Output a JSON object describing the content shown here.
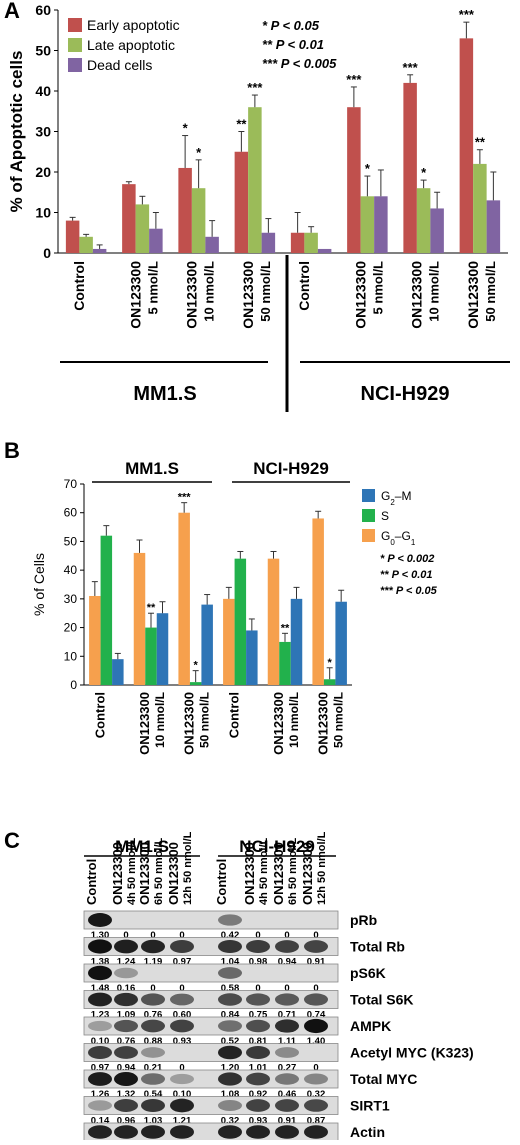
{
  "panel_labels": {
    "a": "A",
    "b": "B",
    "c": "C"
  },
  "colors": {
    "early": "#c0504d",
    "late": "#9bbb59",
    "dead": "#8064a2",
    "g2m": "#2e75b6",
    "s": "#22b14c",
    "g0g1": "#f6a04d"
  },
  "chart_data": [
    {
      "type": "bar",
      "panel": "A",
      "ylabel": "% of Apoptotic cells",
      "ylim": [
        0,
        60
      ],
      "yticks": [
        0,
        10,
        20,
        30,
        40,
        50,
        60
      ],
      "groups": [
        "MM1.S",
        "NCI-H929"
      ],
      "categories": [
        {
          "line1": "Control",
          "line2": ""
        },
        {
          "line1": "ON123300",
          "line2": "5 nmol/L"
        },
        {
          "line1": "ON123300",
          "line2": "10 nmol/L"
        },
        {
          "line1": "ON123300",
          "line2": "50 nmol/L"
        },
        {
          "line1": "Control",
          "line2": ""
        },
        {
          "line1": "ON123300",
          "line2": "5 nmol/L"
        },
        {
          "line1": "ON123300",
          "line2": "10 nmol/L"
        },
        {
          "line1": "ON123300",
          "line2": "50 nmol/L"
        }
      ],
      "series": [
        {
          "name": "Early apoptotic",
          "color_key": "early",
          "values": [
            8,
            17,
            21,
            25,
            5,
            36,
            42,
            53
          ],
          "errors": [
            0.8,
            0.6,
            8,
            5,
            5,
            5,
            2,
            4
          ],
          "stars": [
            "",
            "",
            "*",
            "**",
            "",
            "***",
            "***",
            "***"
          ]
        },
        {
          "name": "Late apoptotic",
          "color_key": "late",
          "values": [
            4,
            12,
            16,
            36,
            5,
            14,
            16,
            22
          ],
          "errors": [
            0.6,
            2,
            7,
            3,
            1.5,
            5,
            2,
            3.5
          ],
          "stars": [
            "",
            "",
            "*",
            "***",
            "",
            "*",
            "*",
            "**"
          ]
        },
        {
          "name": "Dead cells",
          "color_key": "dead",
          "values": [
            1,
            6,
            4,
            5,
            1,
            14,
            11,
            13
          ],
          "errors": [
            1,
            4,
            4,
            3.5,
            0,
            6.5,
            4,
            7
          ],
          "stars": [
            "",
            "",
            "",
            "",
            "",
            "",
            "",
            ""
          ]
        }
      ],
      "significance": [
        "* P < 0.05",
        "** P < 0.01",
        "*** P < 0.005"
      ]
    },
    {
      "type": "bar",
      "panel": "B",
      "ylabel": "% of Cells",
      "ylim": [
        0,
        70
      ],
      "yticks": [
        0,
        10,
        20,
        30,
        40,
        50,
        60,
        70
      ],
      "groups": [
        "MM1.S",
        "NCI-H929"
      ],
      "categories": [
        {
          "line1": "Control",
          "line2": ""
        },
        {
          "line1": "ON123300",
          "line2": "10 nmol/L"
        },
        {
          "line1": "ON123300",
          "line2": "50 nmol/L"
        },
        {
          "line1": "Control",
          "line2": ""
        },
        {
          "line1": "ON123300",
          "line2": "10 nmol/L"
        },
        {
          "line1": "ON123300",
          "line2": "50 nmol/L"
        }
      ],
      "series": [
        {
          "name": "G0–G1",
          "color_key": "g0g1",
          "values": [
            31,
            46,
            60,
            30,
            44,
            58
          ],
          "errors": [
            5,
            4.5,
            3.5,
            4,
            2.5,
            2.5
          ],
          "stars": [
            "",
            "",
            "***",
            "",
            "",
            ""
          ]
        },
        {
          "name": "S",
          "color_key": "s",
          "values": [
            52,
            20,
            1,
            44,
            15,
            2
          ],
          "errors": [
            3.5,
            5,
            4,
            2.5,
            3,
            4
          ],
          "stars": [
            "",
            "**",
            "*",
            "",
            "**",
            "*"
          ]
        },
        {
          "name": "G2–M",
          "color_key": "g2m",
          "values": [
            9,
            25,
            28,
            19,
            30,
            29
          ],
          "errors": [
            2,
            4,
            3.5,
            4,
            4,
            4
          ],
          "stars": [
            "",
            "",
            "",
            "",
            "",
            ""
          ]
        }
      ],
      "legend": [
        {
          "base": "G",
          "sub": "2",
          "rest": "–M",
          "color_key": "g2m"
        },
        {
          "base": "S",
          "sub": "",
          "rest": "",
          "color_key": "s"
        },
        {
          "base": "G",
          "sub": "0",
          "rest": "–G",
          "sub2": "1",
          "color_key": "g0g1"
        }
      ],
      "significance": [
        "* P < 0.002",
        "** P < 0.01",
        "*** P < 0.05"
      ]
    }
  ],
  "blot": {
    "groups": [
      "MM1.S",
      "NCI-H929"
    ],
    "columns": [
      {
        "l1": "Control",
        "l2": ""
      },
      {
        "l1": "ON123300",
        "l2": "4h 50 nmol/L"
      },
      {
        "l1": "ON123300",
        "l2": "6h 50 nmol/L"
      },
      {
        "l1": "ON123300",
        "l2": "12h 50 nmol/L"
      },
      {
        "l1": "Control",
        "l2": ""
      },
      {
        "l1": "ON123300",
        "l2": "4h 50 nmol/L"
      },
      {
        "l1": "ON123300",
        "l2": "6h 50 nmol/L"
      },
      {
        "l1": "ON123300",
        "l2": "12h 50 nmol/L"
      }
    ],
    "rows": [
      {
        "label": "pRb",
        "values": [
          "1.30",
          "0",
          "0",
          "0",
          "0.42",
          "0",
          "0",
          "0"
        ],
        "band": [
          1.3,
          0,
          0,
          0,
          0.42,
          0,
          0,
          0
        ]
      },
      {
        "label": "Total Rb",
        "values": [
          "1.38",
          "1.24",
          "1.19",
          "0.97",
          "1.04",
          "0.98",
          "0.94",
          "0.91"
        ],
        "band": [
          1.38,
          1.24,
          1.19,
          0.97,
          1.04,
          0.98,
          0.94,
          0.91
        ]
      },
      {
        "label": "pS6K",
        "values": [
          "1.48",
          "0.16",
          "0",
          "0",
          "0.58",
          "0",
          "0",
          "0"
        ],
        "band": [
          1.48,
          0.16,
          0,
          0,
          0.58,
          0,
          0,
          0
        ]
      },
      {
        "label": "Total S6K",
        "values": [
          "1.23",
          "1.09",
          "0.76",
          "0.60",
          "0.84",
          "0.75",
          "0.71",
          "0.74"
        ],
        "band": [
          1.23,
          1.09,
          0.76,
          0.6,
          0.84,
          0.75,
          0.71,
          0.74
        ]
      },
      {
        "label": "AMPK",
        "values": [
          "0.10",
          "0.76",
          "0.88",
          "0.93",
          "0.52",
          "0.81",
          "1.11",
          "1.40"
        ],
        "band": [
          0.1,
          0.76,
          0.88,
          0.93,
          0.52,
          0.81,
          1.11,
          1.4
        ]
      },
      {
        "label": "Acetyl MYC (K323)",
        "values": [
          "0.97",
          "0.94",
          "0.21",
          "0",
          "1.20",
          "1.01",
          "0.27",
          "0"
        ],
        "band": [
          0.97,
          0.94,
          0.21,
          0,
          1.2,
          1.01,
          0.27,
          0
        ]
      },
      {
        "label": "Total MYC",
        "values": [
          "1.26",
          "1.32",
          "0.54",
          "0.10",
          "1.08",
          "0.92",
          "0.46",
          "0.32"
        ],
        "band": [
          1.26,
          1.32,
          0.54,
          0.1,
          1.08,
          0.92,
          0.46,
          0.32
        ]
      },
      {
        "label": "SIRT1",
        "values": [
          "0.14",
          "0.96",
          "1.03",
          "1.21",
          "0.32",
          "0.93",
          "0.91",
          "0.87"
        ],
        "band": [
          0.14,
          0.96,
          1.03,
          1.21,
          0.32,
          0.93,
          0.91,
          0.87
        ]
      },
      {
        "label": "Actin",
        "values": [
          "",
          "",
          "",
          "",
          "",
          "",
          "",
          ""
        ],
        "band": [
          1.2,
          1.2,
          1.2,
          1.2,
          1.2,
          1.2,
          1.2,
          1.2
        ]
      }
    ]
  }
}
